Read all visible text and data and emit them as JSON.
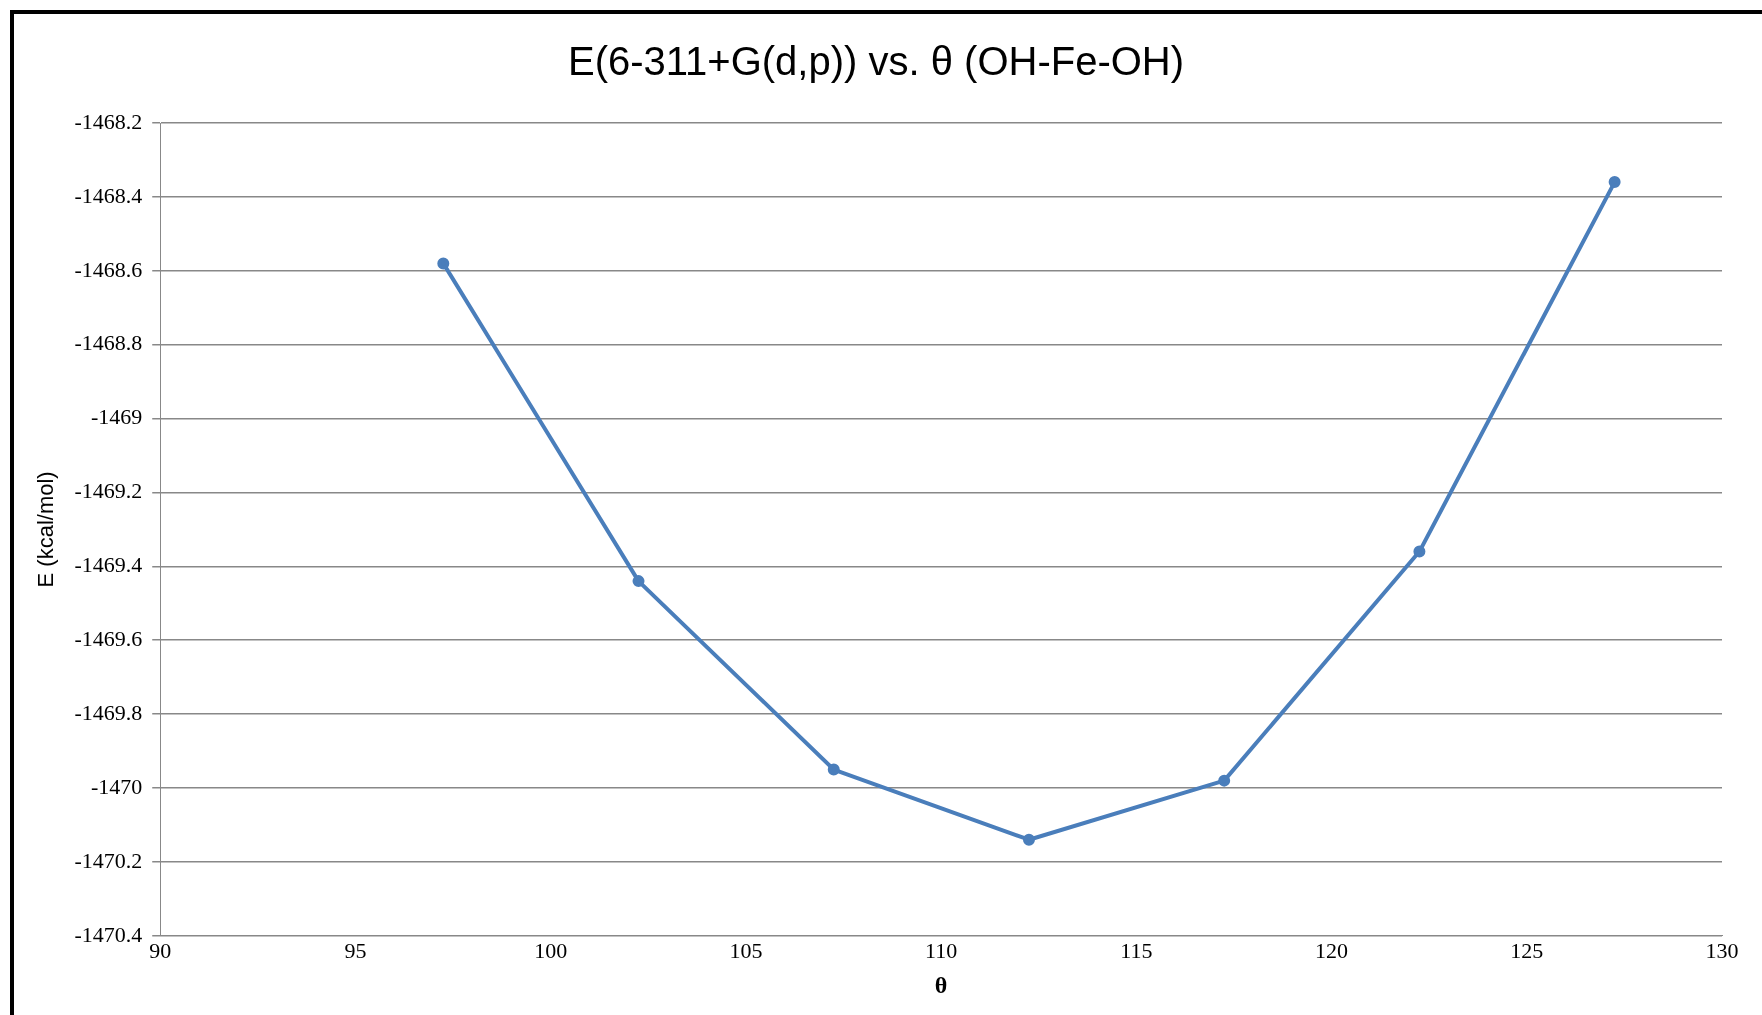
{
  "chart_data": {
    "type": "line",
    "title": "E(6-311+G(d,p)) vs. θ (OH-Fe-OH)",
    "xlabel": "θ",
    "ylabel": "E (kcal/mol)",
    "x": [
      97.25,
      102.25,
      107.25,
      112.25,
      117.25,
      122.25,
      127.25
    ],
    "series": [
      {
        "color": "#4a7ebb",
        "values": [
          -1468.58,
          -1469.44,
          -1469.95,
          -1470.14,
          -1469.98,
          -1469.36,
          -1468.36
        ]
      }
    ],
    "xlim": [
      90,
      130
    ],
    "xticks": [
      90,
      95,
      100,
      105,
      110,
      115,
      120,
      125,
      130
    ],
    "ylim": [
      -1470.4,
      -1468.2
    ],
    "yticks": [
      -1470.4,
      -1470.2,
      -1470,
      -1469.8,
      -1469.6,
      -1469.4,
      -1469.2,
      -1469,
      -1468.8,
      -1468.6,
      -1468.4,
      -1468.2
    ],
    "grid": "y",
    "legend": false,
    "marker": "circle",
    "line_style": "solid"
  }
}
